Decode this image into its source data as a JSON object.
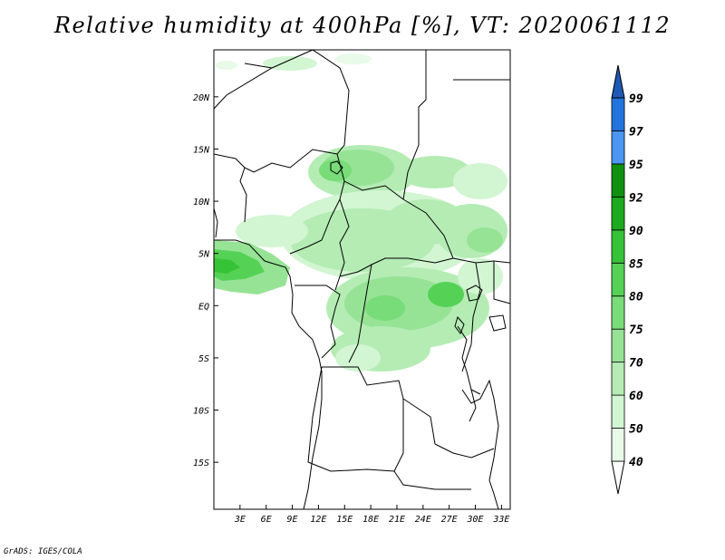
{
  "title": "Relative humidity at 400hPa [%], VT: 2020061112",
  "footer": "GrADS: IGES/COLA",
  "map": {
    "lat_range": [
      -19.5,
      24.5
    ],
    "lon_range": [
      0,
      34
    ],
    "x_ticks": [
      {
        "lon": 3,
        "label": "3E"
      },
      {
        "lon": 6,
        "label": "6E"
      },
      {
        "lon": 9,
        "label": "9E"
      },
      {
        "lon": 12,
        "label": "12E"
      },
      {
        "lon": 15,
        "label": "15E"
      },
      {
        "lon": 18,
        "label": "18E"
      },
      {
        "lon": 21,
        "label": "21E"
      },
      {
        "lon": 24,
        "label": "24E"
      },
      {
        "lon": 27,
        "label": "27E"
      },
      {
        "lon": 30,
        "label": "30E"
      },
      {
        "lon": 33,
        "label": "33E"
      }
    ],
    "y_ticks": [
      {
        "lat": 20,
        "label": "20N"
      },
      {
        "lat": 15,
        "label": "15N"
      },
      {
        "lat": 10,
        "label": "10N"
      },
      {
        "lat": 5,
        "label": "5N"
      },
      {
        "lat": 0,
        "label": "EQ"
      },
      {
        "lat": -5,
        "label": "5S"
      },
      {
        "lat": -10,
        "label": "10S"
      },
      {
        "lat": -15,
        "label": "15S"
      }
    ]
  },
  "legend": {
    "levels": [
      {
        "label": "40",
        "color": "#e8fae8"
      },
      {
        "label": "50",
        "color": "#d2f5d2"
      },
      {
        "label": "60",
        "color": "#b4ecb4"
      },
      {
        "label": "70",
        "color": "#96e396"
      },
      {
        "label": "75",
        "color": "#78dc78"
      },
      {
        "label": "80",
        "color": "#55d255"
      },
      {
        "label": "85",
        "color": "#37c337"
      },
      {
        "label": "90",
        "color": "#1eaa1e"
      },
      {
        "label": "92",
        "color": "#0f910f"
      },
      {
        "label": "95",
        "color": "#4a96f0"
      },
      {
        "label": "97",
        "color": "#2274dc"
      },
      {
        "label": "99",
        "color": "#1e5ab4"
      }
    ],
    "below_color": "#ffffff",
    "above_color": "#1e5ab4"
  }
}
